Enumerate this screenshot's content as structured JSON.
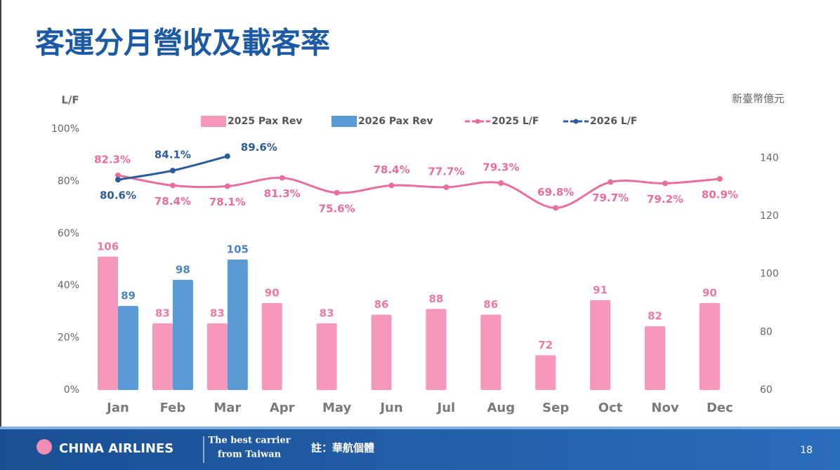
{
  "chart_data": {
    "type": "bar",
    "title": "客運分月營收及載客率",
    "y_label": "L/F",
    "y2_label": "新臺幣億元",
    "categories": [
      "Jan",
      "Feb",
      "Mar",
      "Apr",
      "May",
      "Jun",
      "Jul",
      "Aug",
      "Sep",
      "Oct",
      "Nov",
      "Dec"
    ],
    "series": [
      {
        "name": "2025  Pax Rev",
        "type": "bar",
        "axis": "y2",
        "color": "#f598bc",
        "label_color": "#ec79a6",
        "values": [
          106,
          83,
          83,
          90,
          83,
          86,
          88,
          86,
          72,
          91,
          82,
          90
        ]
      },
      {
        "name": "2026  Pax Rev",
        "type": "bar",
        "axis": "y2",
        "color": "#5b9bd5",
        "label_color": "#4a86c5",
        "values": [
          89,
          98,
          105,
          null,
          null,
          null,
          null,
          null,
          null,
          null,
          null,
          null
        ]
      },
      {
        "name": "2025 L/F",
        "type": "line",
        "axis": "y",
        "color": "#ea6d9f",
        "values": [
          82.3,
          78.4,
          78.1,
          81.3,
          75.6,
          78.4,
          77.7,
          79.3,
          69.8,
          79.7,
          79.2,
          80.9
        ],
        "value_labels": [
          "82.3%",
          "78.4%",
          "78.1%",
          "81.3%",
          "75.6%",
          "78.4%",
          "77.7%",
          "79.3%",
          "69.8%",
          "79.7%",
          "79.2%",
          "80.9%"
        ]
      },
      {
        "name": "2026 L/F",
        "type": "line",
        "axis": "y",
        "color": "#2b5c9c",
        "values": [
          80.6,
          84.1,
          89.6,
          null,
          null,
          null,
          null,
          null,
          null,
          null,
          null,
          null
        ],
        "value_labels": [
          "80.6%",
          "84.1%",
          "89.6%",
          null,
          null,
          null,
          null,
          null,
          null,
          null,
          null,
          null
        ]
      }
    ],
    "ylim": [
      0,
      100
    ],
    "yticks": [
      {
        "value": 0,
        "label": "0%"
      },
      {
        "value": 20,
        "label": "20%"
      },
      {
        "value": 40,
        "label": "40%"
      },
      {
        "value": 60,
        "label": "60%"
      },
      {
        "value": 80,
        "label": "80%"
      },
      {
        "value": 100,
        "label": "100%"
      }
    ],
    "y2lim": [
      60,
      150
    ],
    "y2ticks": [
      60,
      80,
      100,
      120,
      140
    ],
    "legend": "top",
    "grid": false
  },
  "footer": {
    "brand": "CHINA AIRLINES",
    "slogan_1": "The best carrier",
    "slogan_2": "from Taiwan",
    "note": "註：華航個體",
    "page": "18"
  }
}
